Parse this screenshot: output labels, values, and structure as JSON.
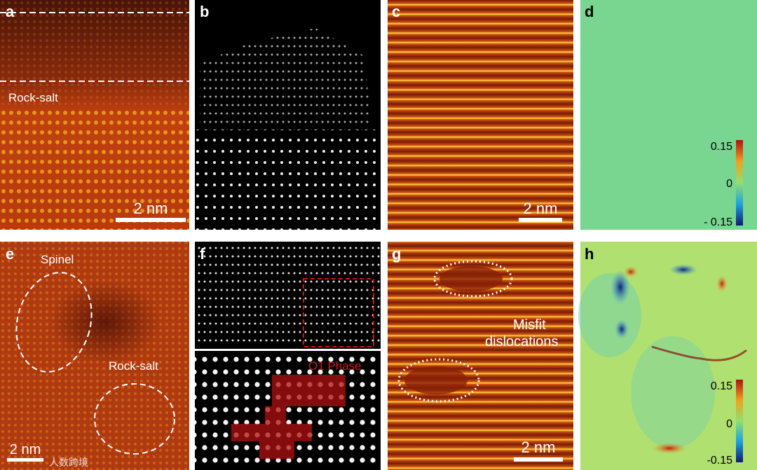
{
  "panels": [
    {
      "label": "a",
      "annotations": [
        "Rock-salt"
      ],
      "scale_bar": "2 nm"
    },
    {
      "label": "b"
    },
    {
      "label": "c",
      "scale_bar": "2 nm"
    },
    {
      "label": "d",
      "colorbar": [
        "0.15",
        "0",
        "- 0.15"
      ]
    },
    {
      "label": "e",
      "annotations": [
        "Spinel",
        "Rock-salt"
      ],
      "scale_bar": "2 nm"
    },
    {
      "label": "f",
      "annotations": [
        "O1 Phase"
      ]
    },
    {
      "label": "g",
      "annotations": [
        "Misfit",
        "dislocations"
      ],
      "scale_bar": "2 nm"
    },
    {
      "label": "h",
      "colorbar": [
        "0.15",
        "0",
        "-0.15"
      ]
    }
  ],
  "watermark": "人数跨境"
}
